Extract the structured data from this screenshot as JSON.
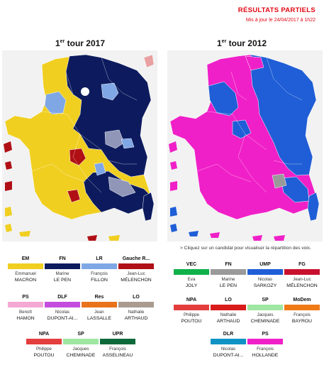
{
  "header": {
    "title": "RÉSULTATS PARTIELS",
    "updated": "Mis à jour le 24/04/2017 à 1h22"
  },
  "maps": [
    {
      "title_pre": "1",
      "title_sup": "er",
      "title_post": " tour 2017"
    },
    {
      "title_pre": "1",
      "title_sup": "er",
      "title_post": " tour 2012"
    }
  ],
  "hint": "> Cliquez sur un candidat pour visualiser la répartition des voix.",
  "colors": {
    "background_land": "#f2f2f2",
    "macron": "#f0cf21",
    "le_pen": "#0d1b5e",
    "fillon": "#7fa7e6",
    "melenchon": "#b01015",
    "hamon": "#f4a9d4",
    "dupont_aignan_2017": "#c44de0",
    "lassalle": "#e8731a",
    "arthaud": "#a99b8e",
    "poutou": "#e33d3d",
    "cheminade": "#9fe6a3",
    "asselineau": "#0c6a3a",
    "sarkozy": "#1f5ed6",
    "hollande": "#f020c8",
    "joly": "#10b14a",
    "le_pen_2012": "#9a9a9a",
    "melenchon_2012": "#c8102e",
    "bayrou": "#f07a16",
    "arthaud_2012": "#d81b1b",
    "dupont_aignan_2012": "#0f93c4",
    "accent": "#e30613"
  },
  "legend_2017": [
    {
      "party": "EM",
      "first": "Emmanuel",
      "last": "MACRON",
      "color": "#f0cf21"
    },
    {
      "party": "FN",
      "first": "Marine",
      "last": "LE PEN",
      "color": "#0d1b5e"
    },
    {
      "party": "LR",
      "first": "François",
      "last": "FILLON",
      "color": "#7fa7e6"
    },
    {
      "party": "Gauche R...",
      "first": "Jean-Luc",
      "last": "MÉLENCHON",
      "color": "#b01015"
    },
    {
      "party": "PS",
      "first": "Benoît",
      "last": "HAMON",
      "color": "#f4a9d4"
    },
    {
      "party": "DLF",
      "first": "Nicolas",
      "last": "DUPONT-AI...",
      "color": "#c44de0"
    },
    {
      "party": "Res",
      "first": "Jean",
      "last": "LASSALLE",
      "color": "#e8731a"
    },
    {
      "party": "LO",
      "first": "Nathalie",
      "last": "ARTHAUD",
      "color": "#a99b8e"
    },
    {
      "party": "NPA",
      "first": "Philippe",
      "last": "POUTOU",
      "color": "#e33d3d"
    },
    {
      "party": "SP",
      "first": "Jacques",
      "last": "CHEMINADE",
      "color": "#9fe6a3"
    },
    {
      "party": "UPR",
      "first": "François",
      "last": "ASSELINEAU",
      "color": "#0c6a3a"
    }
  ],
  "legend_2012": [
    {
      "party": "VEC",
      "first": "Eva",
      "last": "JOLY",
      "color": "#10b14a"
    },
    {
      "party": "FN",
      "first": "Marine",
      "last": "LE PEN",
      "color": "#9a9a9a"
    },
    {
      "party": "UMP",
      "first": "Nicolas",
      "last": "SARKOZY",
      "color": "#1f5ed6"
    },
    {
      "party": "FG",
      "first": "Jean-Luc",
      "last": "MÉLENCHON",
      "color": "#c8102e"
    },
    {
      "party": "NPA",
      "first": "Philippe",
      "last": "POUTOU",
      "color": "#e33d3d"
    },
    {
      "party": "LO",
      "first": "Nathalie",
      "last": "ARTHAUD",
      "color": "#d81b1b"
    },
    {
      "party": "SP",
      "first": "Jacques",
      "last": "CHEMINADE",
      "color": "#9fe6a3"
    },
    {
      "party": "MoDem",
      "first": "François",
      "last": "BAYROU",
      "color": "#f07a16"
    },
    {
      "party": "DLR",
      "first": "Nicolas",
      "last": "DUPONT-AI...",
      "color": "#0f93c4"
    },
    {
      "party": "PS",
      "first": "François",
      "last": "HOLLANDE",
      "color": "#f020c8"
    }
  ]
}
